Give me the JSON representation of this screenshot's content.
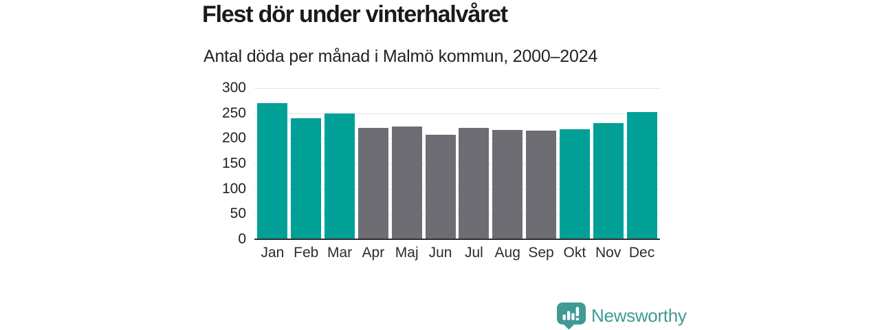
{
  "title": "Flest dör under vinterhalvåret",
  "subtitle": "Antal döda per månad i Malmö kommun, 2000–2024",
  "branding": {
    "name": "Newsworthy"
  },
  "colors": {
    "winter_bar": "#00a096",
    "summer_bar": "#6e6d73",
    "brand": "#3f9a94",
    "gridline": "#e4e4e4",
    "axis_line": "#2d2d2d"
  },
  "chart_data": {
    "type": "bar",
    "title": "Flest dör under vinterhalvåret",
    "subtitle": "Antal döda per månad i Malmö kommun, 2000–2024",
    "categories": [
      "Jan",
      "Feb",
      "Mar",
      "Apr",
      "Maj",
      "Jun",
      "Jul",
      "Aug",
      "Sep",
      "Okt",
      "Nov",
      "Dec"
    ],
    "values": [
      270,
      240,
      250,
      221,
      224,
      207,
      221,
      217,
      216,
      218,
      231,
      252
    ],
    "highlighted_categories": [
      "Jan",
      "Feb",
      "Mar",
      "Okt",
      "Nov",
      "Dec"
    ],
    "xlabel": "",
    "ylabel": "",
    "ylim": [
      0,
      300
    ],
    "yticks": [
      0,
      50,
      100,
      150,
      200,
      250,
      300
    ],
    "grid": true,
    "legend_position": "none"
  }
}
